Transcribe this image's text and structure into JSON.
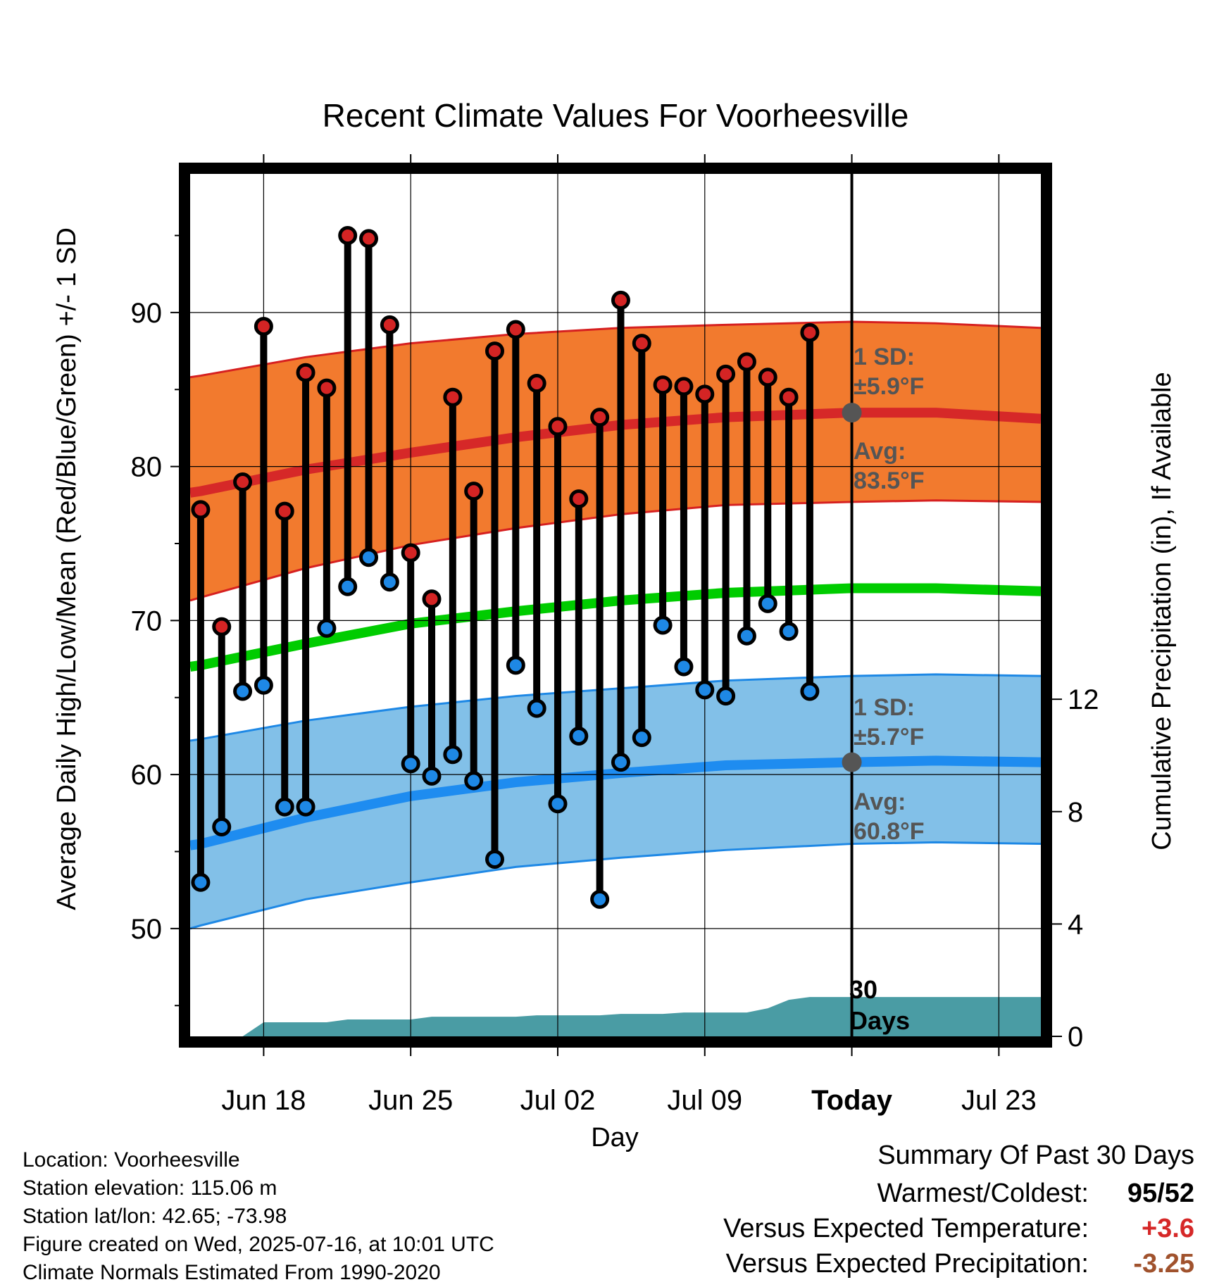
{
  "chart_data": {
    "type": "line",
    "title": "Recent Climate Values For Voorheesville",
    "xlabel": "Day",
    "ylabel": "Average Daily High/Low/Mean (Red/Blue/Green) +/- 1 SD",
    "y2label": "Cumulative Precipitation (in), If Available",
    "x_tick_labels": [
      "Jun 18",
      "Jun 25",
      "Jul 02",
      "Jul 09",
      "Today",
      "Jul 23"
    ],
    "x_tick_days": [
      3,
      10,
      17,
      24,
      31,
      38
    ],
    "x_range_days": [
      -0.5,
      40
    ],
    "today_day": 31,
    "ylim": [
      43,
      99
    ],
    "y_ticks": [
      50,
      60,
      70,
      80,
      90
    ],
    "y2lim": [
      0,
      30.7
    ],
    "y2_ticks": [
      0,
      4,
      8,
      12
    ],
    "grid": true,
    "colors": {
      "high_band": "#f27a2e",
      "high_edge": "#d62020",
      "high_mean": "#d62828",
      "low_band": "#82c0e8",
      "low_edge": "#1e88e5",
      "low_mean": "#1e8cf0",
      "mean_line": "#00cc00",
      "precip": "#4a9ca4",
      "high_marker": "#d42424",
      "low_marker": "#1e88e5",
      "today_marker": "#555555"
    },
    "normals": {
      "days": [
        -0.5,
        0,
        5,
        10,
        15,
        20,
        25,
        31,
        35,
        40
      ],
      "avg_high": [
        78.3,
        78.4,
        79.8,
        80.9,
        81.9,
        82.7,
        83.2,
        83.5,
        83.5,
        83.1
      ],
      "high_plus_sd": [
        85.8,
        85.9,
        87.1,
        88.0,
        88.6,
        89.0,
        89.2,
        89.4,
        89.3,
        89.0
      ],
      "high_minus_sd": [
        71.3,
        71.5,
        73.4,
        74.9,
        76.0,
        76.9,
        77.5,
        77.7,
        77.8,
        77.7
      ],
      "avg_mean": [
        67.0,
        67.1,
        68.5,
        69.8,
        70.6,
        71.3,
        71.8,
        72.1,
        72.1,
        71.9
      ],
      "avg_low": [
        55.4,
        55.5,
        57.2,
        58.6,
        59.5,
        60.1,
        60.6,
        60.8,
        60.9,
        60.8
      ],
      "low_plus_sd": [
        62.2,
        62.3,
        63.5,
        64.4,
        65.1,
        65.6,
        66.1,
        66.4,
        66.5,
        66.4
      ],
      "low_minus_sd": [
        50.0,
        50.2,
        51.9,
        53.0,
        54.0,
        54.6,
        55.1,
        55.5,
        55.6,
        55.5
      ]
    },
    "daily": {
      "days": [
        0,
        1,
        2,
        3,
        4,
        5,
        6,
        7,
        8,
        9,
        10,
        11,
        12,
        13,
        14,
        15,
        16,
        17,
        18,
        19,
        20,
        21,
        22,
        23,
        24,
        25,
        26,
        27,
        28,
        29
      ],
      "high": [
        77.2,
        69.6,
        79.0,
        89.1,
        77.1,
        86.1,
        85.1,
        95.0,
        94.8,
        89.2,
        74.4,
        71.4,
        84.5,
        78.4,
        87.5,
        88.9,
        85.4,
        82.6,
        77.9,
        83.2,
        90.8,
        88.0,
        85.3,
        85.2,
        84.7,
        86.0,
        86.8,
        85.8,
        84.5,
        88.7
      ],
      "low": [
        53.0,
        56.6,
        65.4,
        65.8,
        57.9,
        57.9,
        69.5,
        72.2,
        74.1,
        72.5,
        60.7,
        59.9,
        61.3,
        59.6,
        54.5,
        67.1,
        64.3,
        58.1,
        62.5,
        51.9,
        60.8,
        62.4,
        69.7,
        67.0,
        65.5,
        65.1,
        69.0,
        71.1,
        69.3,
        65.4
      ]
    },
    "precip_cumulative": {
      "days": [
        2,
        3,
        6,
        7,
        10,
        11,
        15,
        16,
        19,
        20,
        22,
        23,
        26,
        27,
        28,
        29,
        31,
        40
      ],
      "inches": [
        0.0,
        0.5,
        0.5,
        0.6,
        0.6,
        0.7,
        0.7,
        0.75,
        0.75,
        0.8,
        0.8,
        0.85,
        0.85,
        1.0,
        1.3,
        1.4,
        1.4,
        1.4
      ]
    },
    "annotations": {
      "high_sd": "1 SD:",
      "high_sd_value": "±5.9°F",
      "high_avg": "Avg:",
      "high_avg_value": "83.5°F",
      "low_sd": "1 SD:",
      "low_sd_value": "±5.7°F",
      "low_avg": "Avg:",
      "low_avg_value": "60.8°F",
      "window_num": "30",
      "window_unit": "Days"
    }
  },
  "info": {
    "location": "Location: Voorheesville",
    "elevation": "Station elevation: 115.06 m",
    "latlon": "Station lat/lon: 42.65; -73.98",
    "created": "Figure created on Wed, 2025-07-16, at 10:01 UTC",
    "normals": "Climate Normals Estimated From 1990-2020"
  },
  "summary": {
    "title": "Summary Of Past 30 Days",
    "warmest_label": "Warmest/Coldest:",
    "warmest_value": "95/52",
    "temp_label": "Versus Expected Temperature:",
    "temp_value": "+3.6",
    "temp_color": "#d62828",
    "precip_label": "Versus Expected Precipitation:",
    "precip_value": "-3.25",
    "precip_color": "#a0522d"
  }
}
